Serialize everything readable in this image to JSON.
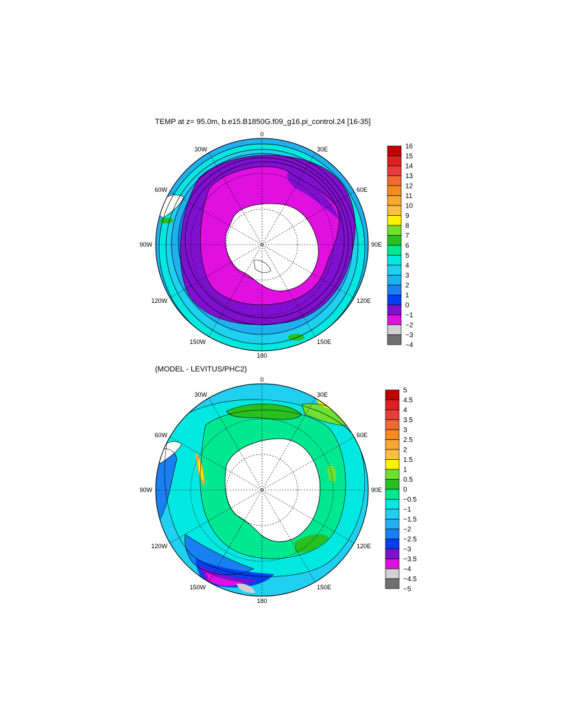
{
  "panel1": {
    "title": "TEMP at z=  95.0m, b.e15.B1850G.f09_g16.pi_control.24 [16-35]",
    "lon_labels": {
      "n": "0",
      "nne": "30E",
      "ene": "60E",
      "e": "90E",
      "ese": "120E",
      "sse": "150E",
      "s": "180",
      "ssw": "150W",
      "wsw": "120W",
      "w": "90W",
      "wnw": "60W",
      "nnw": "30W"
    },
    "colorbar": {
      "labels": [
        "16",
        "15",
        "14",
        "13",
        "12",
        "11",
        "10",
        "9",
        "8",
        "7",
        "6",
        "5",
        "4",
        "3",
        "2",
        "1",
        "0",
        "−1",
        "−2",
        "−3",
        "−4"
      ],
      "colors": [
        "#c00000",
        "#e02020",
        "#e83c3c",
        "#f06a30",
        "#f58a20",
        "#f8a830",
        "#fcc040",
        "#fff000",
        "#6ee030",
        "#28c020",
        "#00e890",
        "#00e8e0",
        "#20d0f0",
        "#20b0f0",
        "#1880f0",
        "#0040f0",
        "#8010d0",
        "#e010e0",
        "#d0d0d0",
        "#707070"
      ]
    }
  },
  "panel2": {
    "title": "(MODEL - LEVITUS/PHC2)",
    "lon_labels": {
      "n": "0",
      "nne": "30E",
      "ene": "60E",
      "e": "90E",
      "ese": "120E",
      "sse": "150E",
      "s": "180",
      "ssw": "150W",
      "wsw": "120W",
      "w": "90W",
      "wnw": "60W",
      "nnw": "30W"
    },
    "colorbar": {
      "labels": [
        "5",
        "4.5",
        "4",
        "3.5",
        "3",
        "2.5",
        "2",
        "1.5",
        "1",
        "0.5",
        "0",
        "−0.5",
        "−1",
        "−1.5",
        "−2",
        "−2.5",
        "−3",
        "−3.5",
        "−4",
        "−4.5",
        "−5"
      ],
      "colors": [
        "#c00000",
        "#e02020",
        "#e83c3c",
        "#f06a30",
        "#f58a20",
        "#f8a830",
        "#fcc040",
        "#fff000",
        "#6ee030",
        "#28c020",
        "#00e890",
        "#00e8e0",
        "#20d0f0",
        "#20b0f0",
        "#1880f0",
        "#0040f0",
        "#8010d0",
        "#e010e0",
        "#d0d0d0",
        "#707070"
      ]
    }
  }
}
